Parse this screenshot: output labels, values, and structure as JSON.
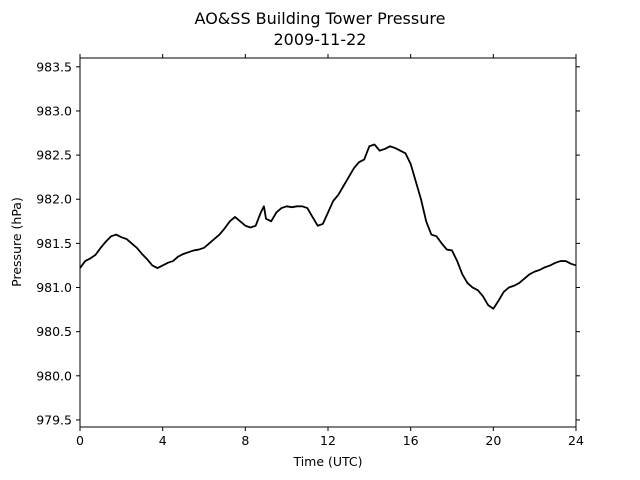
{
  "chart_data": {
    "type": "line",
    "title": "AO&SS Building Tower Pressure",
    "subtitle": "2009-11-22",
    "xlabel": "Time (UTC)",
    "ylabel": "Pressure (hPa)",
    "xlim": [
      0,
      24
    ],
    "ylim": [
      979.42,
      983.6
    ],
    "xticks": [
      0,
      4,
      8,
      12,
      16,
      20,
      24
    ],
    "yticks": [
      979.5,
      980.0,
      980.5,
      981.0,
      981.5,
      982.0,
      982.5,
      983.0,
      983.5
    ],
    "grid": false,
    "series": [
      {
        "color": "#000000",
        "x": [
          0,
          0.25,
          0.5,
          0.75,
          1.0,
          1.25,
          1.5,
          1.75,
          2.0,
          2.25,
          2.5,
          2.75,
          3.0,
          3.25,
          3.5,
          3.75,
          4.0,
          4.25,
          4.5,
          4.75,
          5.0,
          5.25,
          5.5,
          5.75,
          6.0,
          6.25,
          6.5,
          6.75,
          7.0,
          7.25,
          7.5,
          7.75,
          8.0,
          8.25,
          8.5,
          8.75,
          8.9,
          9.0,
          9.25,
          9.5,
          9.75,
          10.0,
          10.25,
          10.5,
          10.75,
          11.0,
          11.25,
          11.5,
          11.75,
          12.0,
          12.25,
          12.5,
          12.75,
          13.0,
          13.25,
          13.5,
          13.75,
          14.0,
          14.25,
          14.5,
          14.75,
          15.0,
          15.25,
          15.5,
          15.75,
          16.0,
          16.25,
          16.5,
          16.75,
          17.0,
          17.25,
          17.5,
          17.75,
          18.0,
          18.25,
          18.5,
          18.75,
          19.0,
          19.25,
          19.5,
          19.75,
          20.0,
          20.25,
          20.5,
          20.75,
          21.0,
          21.25,
          21.5,
          21.75,
          22.0,
          22.25,
          22.5,
          22.75,
          23.0,
          23.25,
          23.5,
          23.75,
          24.0
        ],
        "values": [
          981.22,
          981.3,
          981.33,
          981.37,
          981.45,
          981.52,
          981.58,
          981.6,
          981.57,
          981.55,
          981.5,
          981.45,
          981.38,
          981.32,
          981.25,
          981.22,
          981.25,
          981.28,
          981.3,
          981.35,
          981.38,
          981.4,
          981.42,
          981.43,
          981.45,
          981.5,
          981.55,
          981.6,
          981.67,
          981.75,
          981.8,
          981.75,
          981.7,
          981.68,
          981.7,
          981.85,
          981.92,
          981.78,
          981.75,
          981.85,
          981.9,
          981.92,
          981.91,
          981.92,
          981.92,
          981.9,
          981.8,
          981.7,
          981.72,
          981.85,
          981.98,
          982.05,
          982.15,
          982.25,
          982.35,
          982.42,
          982.45,
          982.6,
          982.62,
          982.55,
          982.57,
          982.6,
          982.58,
          982.55,
          982.52,
          982.4,
          982.2,
          982.0,
          981.75,
          981.6,
          981.58,
          981.5,
          981.43,
          981.42,
          981.3,
          981.15,
          981.05,
          981.0,
          980.97,
          980.9,
          980.8,
          980.76,
          980.85,
          980.95,
          981.0,
          981.02,
          981.05,
          981.1,
          981.15,
          981.18,
          981.2,
          981.23,
          981.25,
          981.28,
          981.3,
          981.3,
          981.27,
          981.25
        ]
      }
    ]
  }
}
